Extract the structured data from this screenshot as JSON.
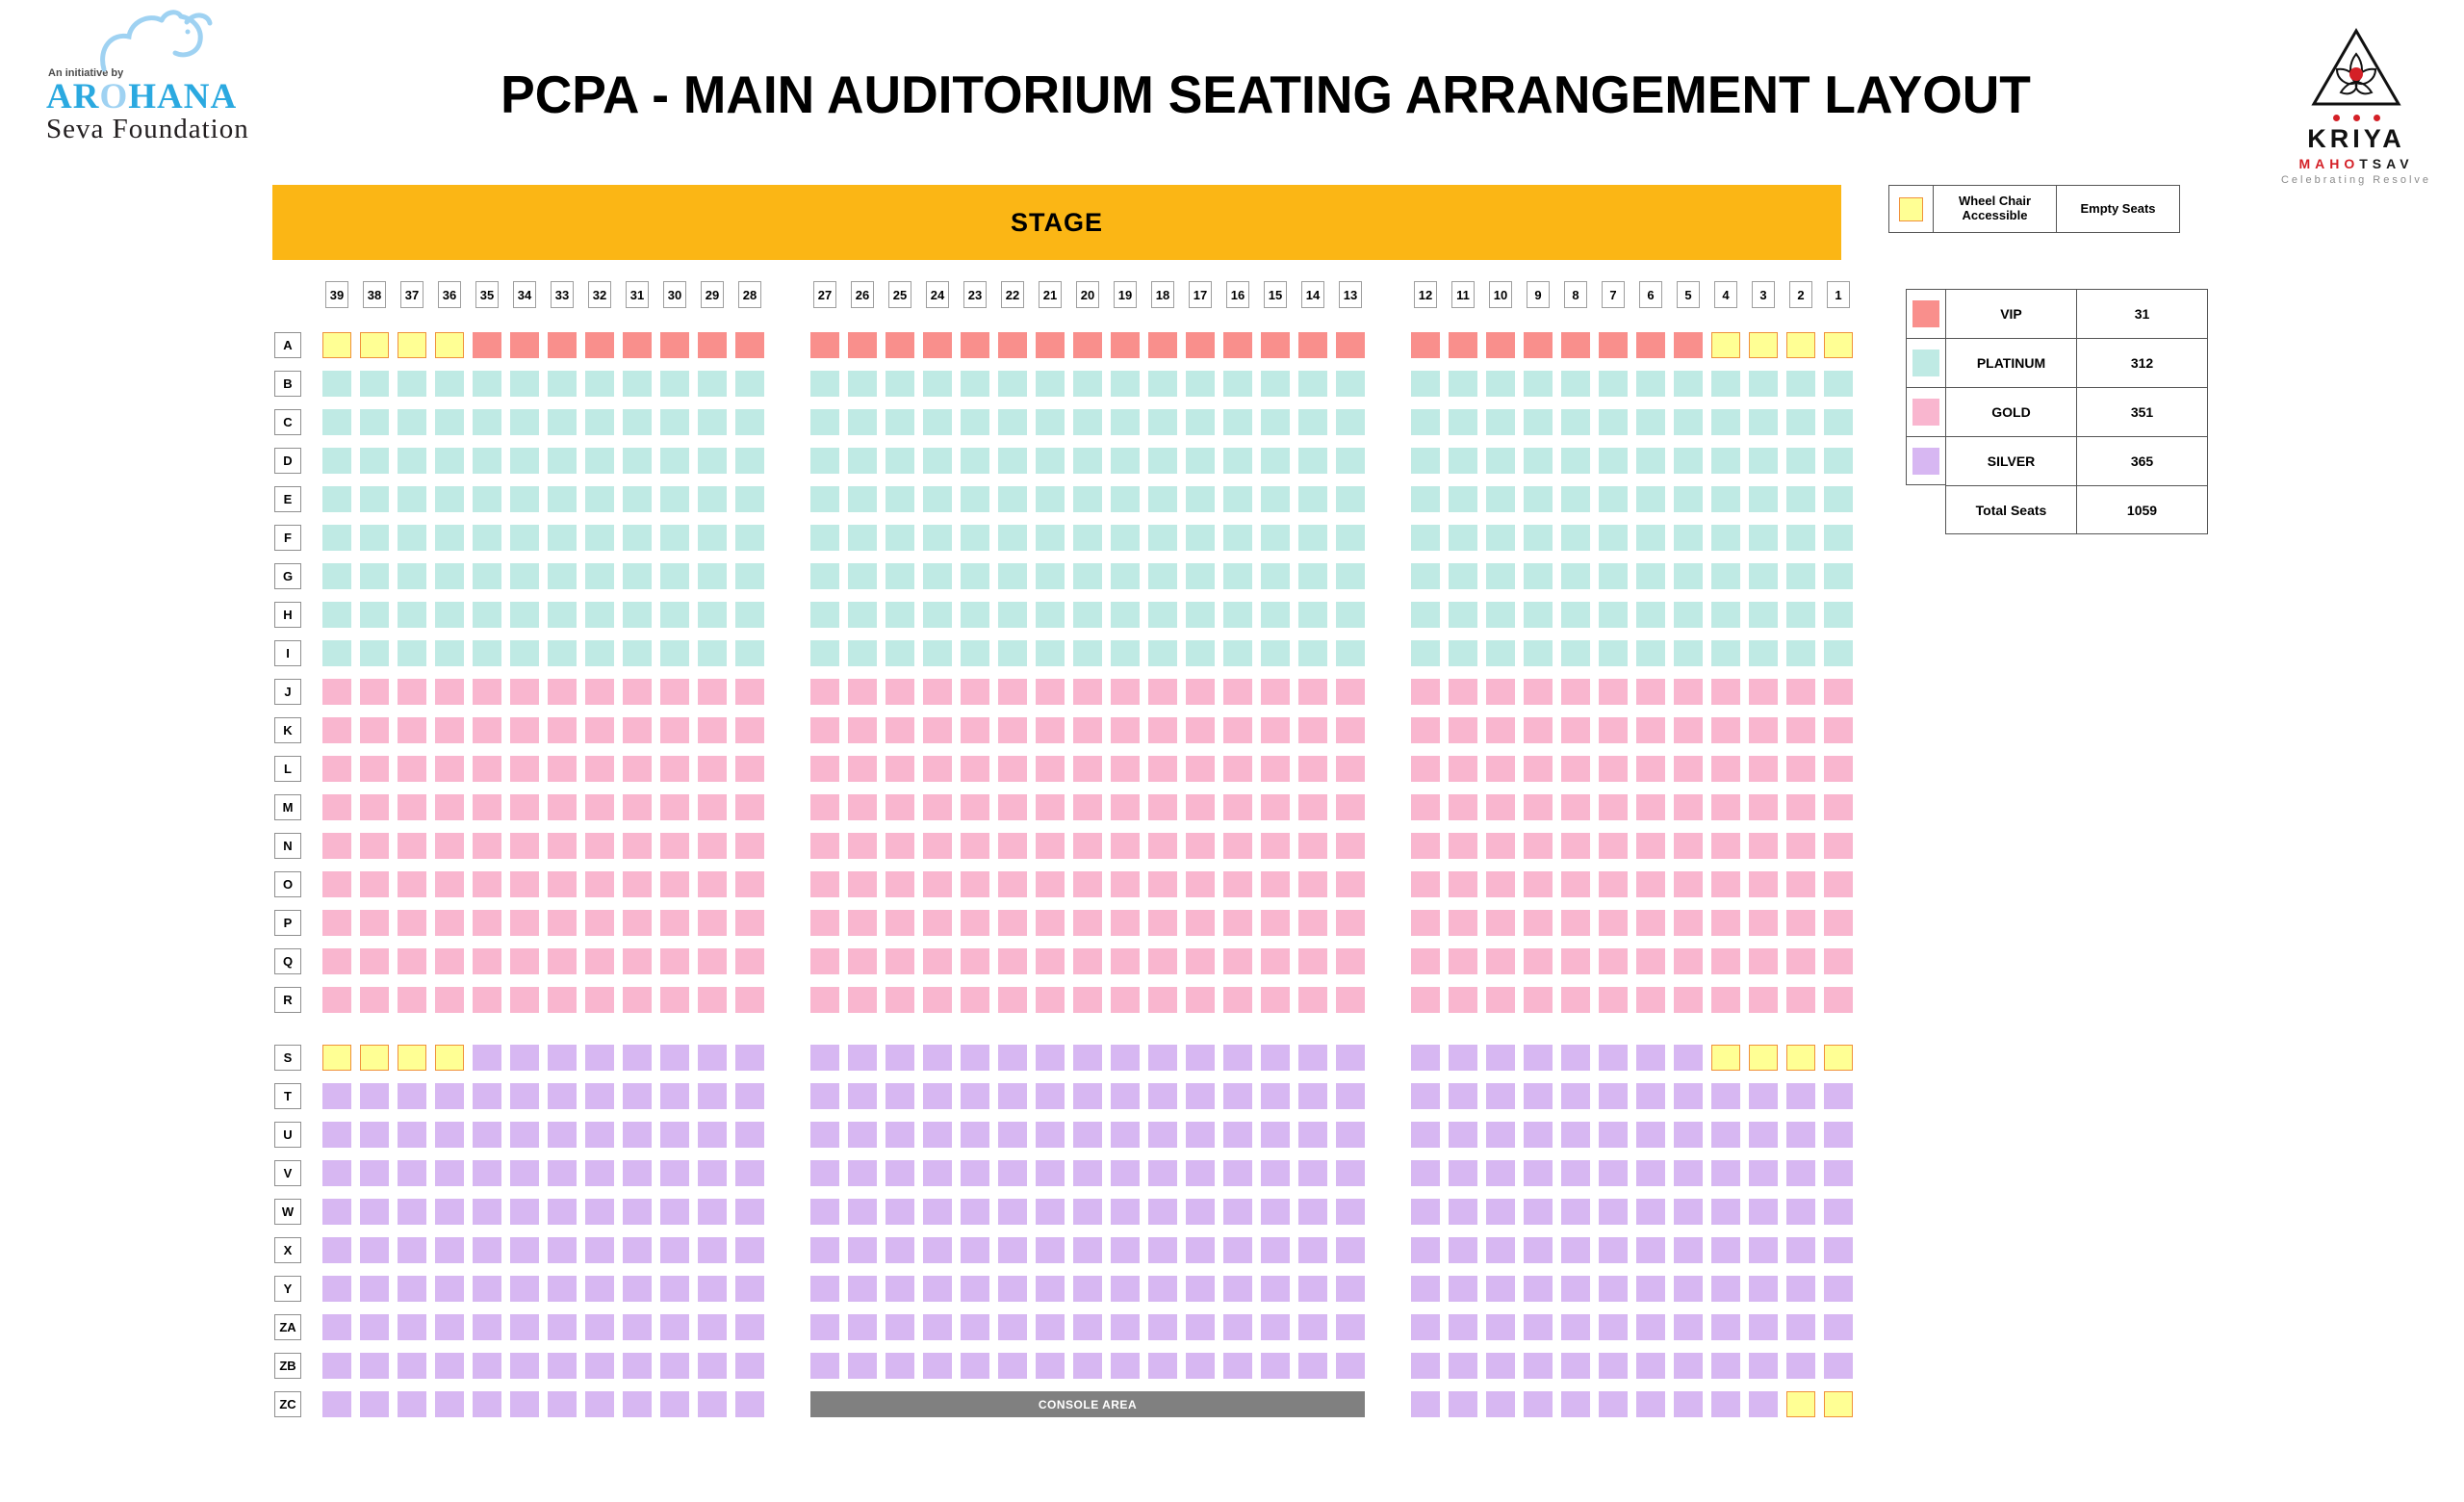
{
  "header": {
    "title": "PCPA - MAIN AUDITORIUM SEATING ARRANGEMENT LAYOUT",
    "left_logo": {
      "tagline": "An initiative by",
      "name_pre": "AR",
      "name_o": "O",
      "name_post": "HANA",
      "subtitle": "Seva Foundation"
    },
    "right_logo": {
      "name": "KRIYA",
      "name2_red": "MAHO",
      "name2_black": "TSAV",
      "tagline": "Celebrating Resolve"
    }
  },
  "stage_label": "STAGE",
  "console_label": "CONSOLE AREA",
  "legend_accessible": {
    "wheelchair_label_line1": "Wheel Chair",
    "wheelchair_label_line2": "Accessible",
    "empty_label": "Empty Seats"
  },
  "legend_categories": {
    "rows": [
      {
        "label": "VIP",
        "count": "31",
        "color": "#F98F8C"
      },
      {
        "label": "PLATINUM",
        "count": "312",
        "color": "#BFEAE4"
      },
      {
        "label": "GOLD",
        "count": "351",
        "color": "#F9B6CF"
      },
      {
        "label": "SILVER",
        "count": "365",
        "color": "#D7B7F2"
      }
    ],
    "total_label": "Total Seats",
    "total_count": "1059"
  },
  "colors": {
    "stage": "#FBB615",
    "console": "#808080",
    "wc-fill": "#FFFF94",
    "wc-border": "#F0913B",
    "vip": "#F98F8C",
    "platinum": "#BFEAE4",
    "gold": "#F9B6CF",
    "silver": "#D7B7F2",
    "brand-blue": "#2BA9E0",
    "brand-red": "#D42027"
  },
  "seating": {
    "column_blocks": [
      [
        39,
        38,
        37,
        36,
        35,
        34,
        33,
        32,
        31,
        30,
        29,
        28
      ],
      [
        27,
        26,
        25,
        24,
        23,
        22,
        21,
        20,
        19,
        18,
        17,
        16,
        15,
        14,
        13
      ],
      [
        12,
        11,
        10,
        9,
        8,
        7,
        6,
        5,
        4,
        3,
        2,
        1
      ]
    ],
    "rows": [
      {
        "label": "A",
        "blocks": [
          "WWWWVVVVVVVV",
          "VVVVVVVVVVVVVVV",
          "VVVVVVVVWWWW"
        ]
      },
      {
        "label": "B",
        "blocks": [
          "PPPPPPPPPPPP",
          "PPPPPPPPPPPPPPP",
          "PPPPPPPPPPPP"
        ]
      },
      {
        "label": "C",
        "blocks": [
          "PPPPPPPPPPPP",
          "PPPPPPPPPPPPPPP",
          "PPPPPPPPPPPP"
        ]
      },
      {
        "label": "D",
        "blocks": [
          "PPPPPPPPPPPP",
          "PPPPPPPPPPPPPPP",
          "PPPPPPPPPPPP"
        ]
      },
      {
        "label": "E",
        "blocks": [
          "PPPPPPPPPPPP",
          "PPPPPPPPPPPPPPP",
          "PPPPPPPPPPPP"
        ]
      },
      {
        "label": "F",
        "blocks": [
          "PPPPPPPPPPPP",
          "PPPPPPPPPPPPPPP",
          "PPPPPPPPPPPP"
        ]
      },
      {
        "label": "G",
        "blocks": [
          "PPPPPPPPPPPP",
          "PPPPPPPPPPPPPPP",
          "PPPPPPPPPPPP"
        ]
      },
      {
        "label": "H",
        "blocks": [
          "PPPPPPPPPPPP",
          "PPPPPPPPPPPPPPP",
          "PPPPPPPPPPPP"
        ]
      },
      {
        "label": "I",
        "blocks": [
          "PPPPPPPPPPPP",
          "PPPPPPPPPPPPPPP",
          "PPPPPPPPPPPP"
        ]
      },
      {
        "label": "J",
        "blocks": [
          "GGGGGGGGGGGG",
          "GGGGGGGGGGGGGGG",
          "GGGGGGGGGGGG"
        ]
      },
      {
        "label": "K",
        "blocks": [
          "GGGGGGGGGGGG",
          "GGGGGGGGGGGGGGG",
          "GGGGGGGGGGGG"
        ]
      },
      {
        "label": "L",
        "blocks": [
          "GGGGGGGGGGGG",
          "GGGGGGGGGGGGGGG",
          "GGGGGGGGGGGG"
        ]
      },
      {
        "label": "M",
        "blocks": [
          "GGGGGGGGGGGG",
          "GGGGGGGGGGGGGGG",
          "GGGGGGGGGGGG"
        ]
      },
      {
        "label": "N",
        "blocks": [
          "GGGGGGGGGGGG",
          "GGGGGGGGGGGGGGG",
          "GGGGGGGGGGGG"
        ]
      },
      {
        "label": "O",
        "blocks": [
          "GGGGGGGGGGGG",
          "GGGGGGGGGGGGGGG",
          "GGGGGGGGGGGG"
        ]
      },
      {
        "label": "P",
        "blocks": [
          "GGGGGGGGGGGG",
          "GGGGGGGGGGGGGGG",
          "GGGGGGGGGGGG"
        ]
      },
      {
        "label": "Q",
        "blocks": [
          "GGGGGGGGGGGG",
          "GGGGGGGGGGGGGGG",
          "GGGGGGGGGGGG"
        ]
      },
      {
        "label": "R",
        "blocks": [
          "GGGGGGGGGGGG",
          "GGGGGGGGGGGGGGG",
          "GGGGGGGGGGGG"
        ]
      },
      {
        "label": "S",
        "gap_before": true,
        "blocks": [
          "WWWWSSSSSSSS",
          "SSSSSSSSSSSSSSS",
          "SSSSSSSSWWWW"
        ]
      },
      {
        "label": "T",
        "blocks": [
          "SSSSSSSSSSSS",
          "SSSSSSSSSSSSSSS",
          "SSSSSSSSSSSS"
        ]
      },
      {
        "label": "U",
        "blocks": [
          "SSSSSSSSSSSS",
          "SSSSSSSSSSSSSSS",
          "SSSSSSSSSSSS"
        ]
      },
      {
        "label": "V",
        "blocks": [
          "SSSSSSSSSSSS",
          "SSSSSSSSSSSSSSS",
          "SSSSSSSSSSSS"
        ]
      },
      {
        "label": "W",
        "blocks": [
          "SSSSSSSSSSSS",
          "SSSSSSSSSSSSSSS",
          "SSSSSSSSSSSS"
        ]
      },
      {
        "label": "X",
        "blocks": [
          "SSSSSSSSSSSS",
          "SSSSSSSSSSSSSSS",
          "SSSSSSSSSSSS"
        ]
      },
      {
        "label": "Y",
        "blocks": [
          "SSSSSSSSSSSS",
          "SSSSSSSSSSSSSSS",
          "SSSSSSSSSSSS"
        ]
      },
      {
        "label": "ZA",
        "blocks": [
          "SSSSSSSSSSSS",
          "SSSSSSSSSSSSSSS",
          "SSSSSSSSSSSS"
        ]
      },
      {
        "label": "ZB",
        "blocks": [
          "SSSSSSSSSSSS",
          "SSSSSSSSSSSSSSS",
          "SSSSSSSSSSSS"
        ]
      },
      {
        "label": "ZC",
        "blocks": [
          "SSSSSSSSSSSS",
          "CONSOLE",
          "SSSSSSSSSSWW"
        ]
      }
    ]
  }
}
